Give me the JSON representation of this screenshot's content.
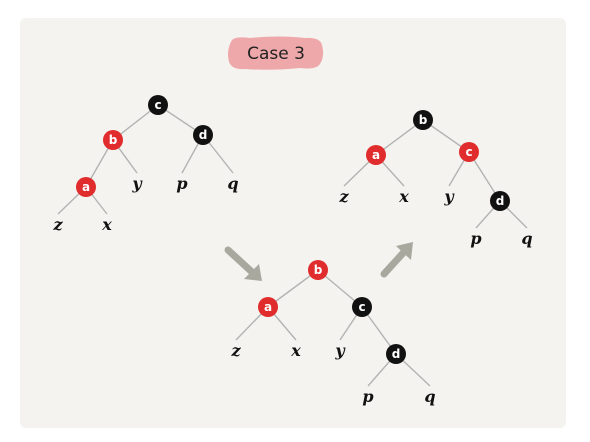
{
  "title": "Case 3",
  "colors": {
    "red": "#e02c2c",
    "black": "#111111",
    "edge": "#b3b3b3",
    "arrow": "#a8a89e",
    "title_bg": "#ec9a9e"
  },
  "trees": [
    {
      "name": "before",
      "nodes": [
        {
          "id": "c",
          "label": "c",
          "color": "black"
        },
        {
          "id": "b",
          "label": "b",
          "color": "red"
        },
        {
          "id": "d",
          "label": "d",
          "color": "black"
        },
        {
          "id": "a",
          "label": "a",
          "color": "red"
        }
      ],
      "leaves": [
        {
          "id": "y",
          "label": "y"
        },
        {
          "id": "p",
          "label": "p"
        },
        {
          "id": "q",
          "label": "q"
        },
        {
          "id": "z",
          "label": "z"
        },
        {
          "id": "x",
          "label": "x"
        }
      ],
      "edges": [
        [
          "c",
          "b"
        ],
        [
          "c",
          "d"
        ],
        [
          "b",
          "a"
        ],
        [
          "b",
          "y"
        ],
        [
          "d",
          "p"
        ],
        [
          "d",
          "q"
        ],
        [
          "a",
          "z"
        ],
        [
          "a",
          "x"
        ]
      ]
    },
    {
      "name": "middle",
      "nodes": [
        {
          "id": "b",
          "label": "b",
          "color": "red"
        },
        {
          "id": "a",
          "label": "a",
          "color": "red"
        },
        {
          "id": "c",
          "label": "c",
          "color": "black"
        },
        {
          "id": "d",
          "label": "d",
          "color": "black"
        }
      ],
      "leaves": [
        {
          "id": "z",
          "label": "z"
        },
        {
          "id": "x",
          "label": "x"
        },
        {
          "id": "y",
          "label": "y"
        },
        {
          "id": "p",
          "label": "p"
        },
        {
          "id": "q",
          "label": "q"
        }
      ],
      "edges": [
        [
          "b",
          "a"
        ],
        [
          "b",
          "c"
        ],
        [
          "a",
          "z"
        ],
        [
          "a",
          "x"
        ],
        [
          "c",
          "y"
        ],
        [
          "c",
          "d"
        ],
        [
          "d",
          "p"
        ],
        [
          "d",
          "q"
        ]
      ]
    },
    {
      "name": "after",
      "nodes": [
        {
          "id": "b",
          "label": "b",
          "color": "black"
        },
        {
          "id": "a",
          "label": "a",
          "color": "red"
        },
        {
          "id": "c",
          "label": "c",
          "color": "red"
        },
        {
          "id": "d",
          "label": "d",
          "color": "black"
        }
      ],
      "leaves": [
        {
          "id": "z",
          "label": "z"
        },
        {
          "id": "x",
          "label": "x"
        },
        {
          "id": "y",
          "label": "y"
        },
        {
          "id": "p",
          "label": "p"
        },
        {
          "id": "q",
          "label": "q"
        }
      ],
      "edges": [
        [
          "b",
          "a"
        ],
        [
          "b",
          "c"
        ],
        [
          "a",
          "z"
        ],
        [
          "a",
          "x"
        ],
        [
          "c",
          "y"
        ],
        [
          "c",
          "d"
        ],
        [
          "d",
          "p"
        ],
        [
          "d",
          "q"
        ]
      ]
    }
  ]
}
